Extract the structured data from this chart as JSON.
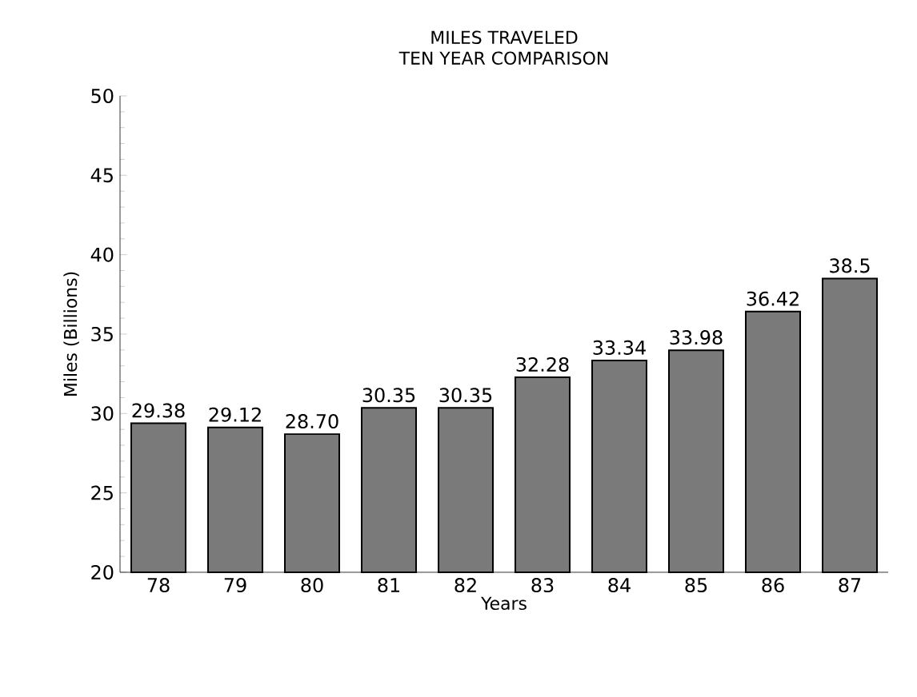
{
  "chart_data": {
    "type": "bar",
    "title": "MILES TRAVELED",
    "subtitle": "TEN YEAR COMPARISON",
    "xlabel": "Years",
    "ylabel": "Miles  (Billions)",
    "categories": [
      "78",
      "79",
      "80",
      "81",
      "82",
      "83",
      "84",
      "85",
      "86",
      "87"
    ],
    "values": [
      29.38,
      29.12,
      28.7,
      30.35,
      30.35,
      32.28,
      33.34,
      33.98,
      36.42,
      38.5
    ],
    "value_labels": [
      "29.38",
      "29.12",
      "28.70",
      "30.35",
      "30.35",
      "32.28",
      "33.34",
      "33.98",
      "36.42",
      "38.5"
    ],
    "color": "#7a7a7a",
    "ylim": [
      20,
      50
    ],
    "yticks": [
      20,
      25,
      30,
      35,
      40,
      45,
      50
    ],
    "grid": false
  }
}
